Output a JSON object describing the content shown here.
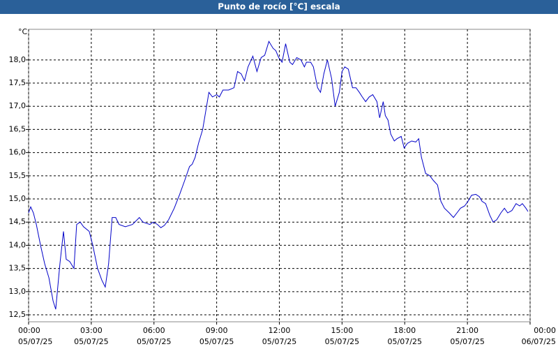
{
  "chart_data": {
    "type": "line",
    "title": "Punto de rocío [°C] escala",
    "y_unit": "°C",
    "color": "#0000c8",
    "grid": true,
    "x": [
      0,
      0.1,
      0.23,
      0.37,
      0.57,
      0.77,
      0.97,
      1.17,
      1.3,
      1.5,
      1.67,
      1.8,
      1.97,
      2.17,
      2.3,
      2.47,
      2.63,
      2.9,
      3.07,
      3.3,
      3.5,
      3.67,
      3.83,
      4.0,
      4.17,
      4.33,
      4.63,
      4.97,
      5.3,
      5.47,
      5.8,
      5.97,
      6.17,
      6.33,
      6.5,
      6.7,
      6.97,
      7.23,
      7.47,
      7.7,
      7.83,
      7.97,
      8.13,
      8.33,
      8.63,
      8.8,
      9.0,
      9.13,
      9.3,
      9.57,
      9.83,
      10.0,
      10.17,
      10.33,
      10.5,
      10.73,
      10.93,
      11.13,
      11.3,
      11.5,
      11.7,
      11.83,
      11.97,
      12.13,
      12.3,
      12.5,
      12.63,
      12.83,
      13.03,
      13.2,
      13.3,
      13.5,
      13.63,
      13.83,
      13.97,
      14.13,
      14.3,
      14.5,
      14.67,
      14.87,
      15.0,
      15.13,
      15.3,
      15.5,
      15.67,
      15.83,
      15.97,
      16.13,
      16.3,
      16.47,
      16.67,
      16.8,
      16.97,
      17.07,
      17.2,
      17.33,
      17.5,
      17.63,
      17.83,
      17.97,
      18.13,
      18.33,
      18.53,
      18.67,
      18.8,
      19.0,
      19.2,
      19.37,
      19.57,
      19.73,
      19.9,
      20.13,
      20.33,
      20.5,
      20.67,
      20.87,
      21.03,
      21.2,
      21.4,
      21.57,
      21.7,
      21.87,
      22.07,
      22.23,
      22.4,
      22.6,
      22.77,
      22.93,
      23.13,
      23.33,
      23.5,
      23.63,
      23.8,
      23.9
    ],
    "values": [
      14.7,
      14.83,
      14.7,
      14.45,
      14.0,
      13.6,
      13.3,
      12.8,
      12.62,
      13.6,
      14.3,
      13.7,
      13.65,
      13.5,
      14.45,
      14.5,
      14.4,
      14.3,
      14.0,
      13.5,
      13.25,
      13.1,
      13.6,
      14.6,
      14.6,
      14.45,
      14.4,
      14.45,
      14.6,
      14.5,
      14.45,
      14.5,
      14.45,
      14.38,
      14.43,
      14.55,
      14.8,
      15.1,
      15.4,
      15.7,
      15.75,
      15.9,
      16.2,
      16.5,
      17.3,
      17.2,
      17.25,
      17.2,
      17.35,
      17.35,
      17.4,
      17.75,
      17.7,
      17.55,
      17.85,
      18.08,
      17.75,
      18.05,
      18.1,
      18.4,
      18.25,
      18.2,
      18.05,
      17.95,
      18.35,
      17.95,
      17.9,
      18.05,
      18.0,
      17.85,
      17.95,
      17.95,
      17.85,
      17.4,
      17.3,
      17.7,
      18.0,
      17.6,
      17.0,
      17.3,
      17.75,
      17.85,
      17.8,
      17.4,
      17.4,
      17.3,
      17.2,
      17.1,
      17.2,
      17.25,
      17.1,
      16.75,
      17.1,
      16.8,
      16.7,
      16.4,
      16.25,
      16.3,
      16.35,
      16.1,
      16.2,
      16.25,
      16.23,
      16.3,
      15.9,
      15.55,
      15.5,
      15.4,
      15.3,
      14.95,
      14.8,
      14.7,
      14.6,
      14.7,
      14.8,
      14.85,
      14.95,
      15.08,
      15.1,
      15.05,
      14.95,
      14.9,
      14.65,
      14.5,
      14.55,
      14.7,
      14.8,
      14.7,
      14.75,
      14.9,
      14.85,
      14.9,
      14.8,
      14.73
    ],
    "xlim": [
      0,
      24
    ],
    "xticks": [
      {
        "value": 0,
        "label": "00:00",
        "date": "05/07/25"
      },
      {
        "value": 3,
        "label": "03:00",
        "date": "05/07/25"
      },
      {
        "value": 6,
        "label": "06:00",
        "date": "05/07/25"
      },
      {
        "value": 9,
        "label": "09:00",
        "date": "05/07/25"
      },
      {
        "value": 12,
        "label": "12:00",
        "date": "05/07/25"
      },
      {
        "value": 15,
        "label": "15:00",
        "date": "05/07/25"
      },
      {
        "value": 18,
        "label": "18:00",
        "date": "05/07/25"
      },
      {
        "value": 21,
        "label": "21:00",
        "date": "05/07/25"
      },
      {
        "value": 24,
        "label": "00:00",
        "date": "06/07/25"
      }
    ],
    "ylim": [
      12.35,
      18.66
    ],
    "yticks": [
      {
        "value": 12.5,
        "label": "12,5"
      },
      {
        "value": 13,
        "label": "13,0"
      },
      {
        "value": 13.5,
        "label": "13,5"
      },
      {
        "value": 14,
        "label": "14,0"
      },
      {
        "value": 14.5,
        "label": "14,5"
      },
      {
        "value": 15,
        "label": "15,0"
      },
      {
        "value": 15.5,
        "label": "15,5"
      },
      {
        "value": 16,
        "label": "16,0"
      },
      {
        "value": 16.5,
        "label": "16,5"
      },
      {
        "value": 17,
        "label": "17,0"
      },
      {
        "value": 17.5,
        "label": "17,5"
      },
      {
        "value": 18,
        "label": "18,0"
      }
    ]
  }
}
